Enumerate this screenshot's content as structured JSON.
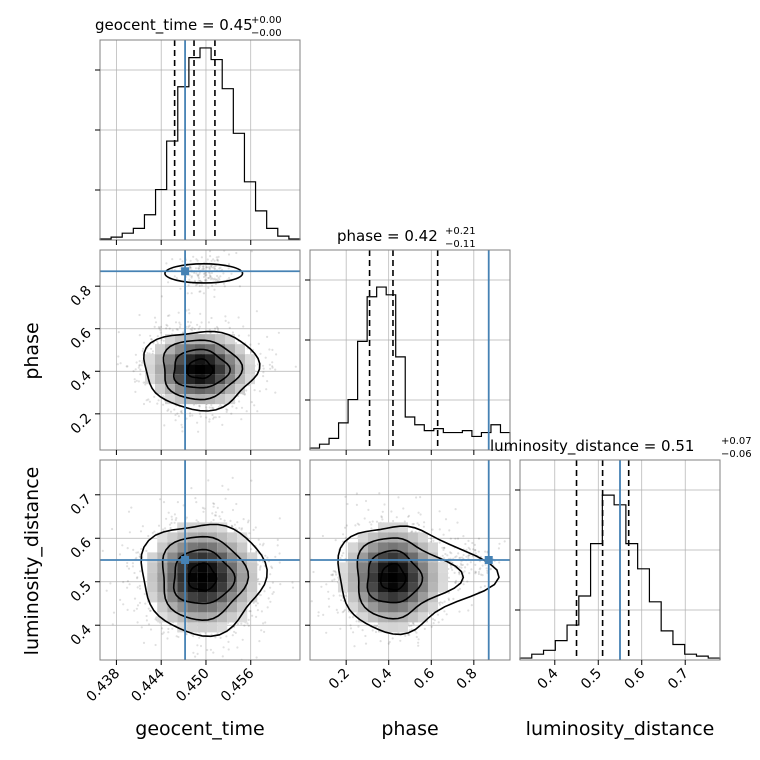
{
  "colors": {
    "truth": "#4682b4",
    "hist": "#000000",
    "grid": "#b0b0b0",
    "frame": "#808080"
  },
  "chart_data": {
    "type": "corner",
    "parameters": [
      {
        "key": "geocent_time",
        "label": "geocent_time",
        "title_prefix": "geocent_time = 0.45",
        "title_plus": "+0.00",
        "title_minus": "−0.00",
        "range": [
          0.4358,
          0.4626
        ],
        "ticks": [
          0.438,
          0.444,
          0.45,
          0.456
        ],
        "tick_labels": [
          "0.438",
          "0.444",
          "0.450",
          "0.456"
        ],
        "truth": 0.4472,
        "quantiles": [
          0.4458,
          0.4484,
          0.4512
        ],
        "hist_values": [
          0.005,
          0.015,
          0.035,
          0.06,
          0.13,
          0.26,
          0.51,
          0.79,
          0.94,
          0.99,
          0.93,
          0.78,
          0.55,
          0.3,
          0.15,
          0.06,
          0.02,
          0.005
        ]
      },
      {
        "key": "phase",
        "label": "phase",
        "title_prefix": "phase = 0.42",
        "title_plus": "+0.21",
        "title_minus": "−0.11",
        "range": [
          0.03,
          0.97
        ],
        "ticks": [
          0.2,
          0.4,
          0.6,
          0.8
        ],
        "tick_labels": [
          "0.2",
          "0.4",
          "0.6",
          "0.8"
        ],
        "truth": 0.87,
        "quantiles": [
          0.31,
          0.42,
          0.63
        ],
        "hist_values": [
          0.01,
          0.03,
          0.06,
          0.14,
          0.26,
          0.56,
          0.79,
          0.84,
          0.8,
          0.48,
          0.17,
          0.13,
          0.1,
          0.11,
          0.09,
          0.09,
          0.1,
          0.07,
          0.09,
          0.13,
          0.09
        ]
      },
      {
        "key": "luminosity_distance",
        "label": "luminosity_distance",
        "title_prefix": "luminosity_distance = 0.51",
        "title_plus": "+0.07",
        "title_minus": "−0.06",
        "range": [
          0.32,
          0.78
        ],
        "ticks": [
          0.4,
          0.5,
          0.6,
          0.7
        ],
        "tick_labels": [
          "0.4",
          "0.5",
          "0.6",
          "0.7"
        ],
        "truth": 0.55,
        "quantiles": [
          0.45,
          0.51,
          0.57
        ],
        "hist_values": [
          0.01,
          0.03,
          0.05,
          0.1,
          0.18,
          0.33,
          0.6,
          0.85,
          0.8,
          0.6,
          0.47,
          0.3,
          0.15,
          0.08,
          0.03,
          0.02,
          0.01
        ]
      }
    ],
    "joint": [
      {
        "x": "geocent_time",
        "y": "phase",
        "mean": [
          0.4492,
          0.41
        ],
        "sd": [
          0.0035,
          0.09
        ],
        "extra_contour": {
          "x": 0.4497,
          "y": 0.86,
          "rx": 0.0052,
          "ry": 0.045
        }
      },
      {
        "x": "geocent_time",
        "y": "luminosity_distance",
        "mean": [
          0.4495,
          0.51
        ],
        "sd": [
          0.0038,
          0.062
        ]
      },
      {
        "x": "phase",
        "y": "luminosity_distance",
        "mean": [
          0.42,
          0.51
        ],
        "sd": [
          0.12,
          0.06
        ],
        "tail_to": [
          0.87,
          0.55
        ]
      }
    ],
    "grid": true
  }
}
